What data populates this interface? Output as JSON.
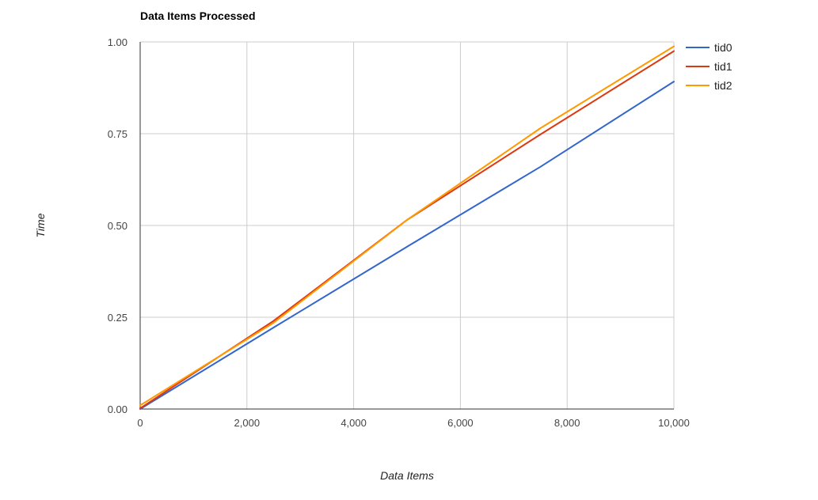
{
  "chart_data": {
    "type": "line",
    "title": "Data Items Processed",
    "xlabel": "Data Items",
    "ylabel": "Time",
    "xlim": [
      0,
      10000
    ],
    "ylim": [
      0,
      1.0
    ],
    "xticks": [
      0,
      2000,
      4000,
      6000,
      8000,
      10000
    ],
    "xtick_labels": [
      "0",
      "2,000",
      "4,000",
      "6,000",
      "8,000",
      "10,000"
    ],
    "yticks": [
      0,
      0.25,
      0.5,
      0.75,
      1.0
    ],
    "ytick_labels": [
      "0.00",
      "0.25",
      "0.50",
      "0.75",
      "1.00"
    ],
    "grid": true,
    "legend_position": "right",
    "series": [
      {
        "name": "tid0",
        "color": "#3366cc",
        "points": [
          [
            0,
            0.0
          ],
          [
            2500,
            0.222
          ],
          [
            5000,
            0.442
          ],
          [
            7500,
            0.66
          ],
          [
            10000,
            0.892
          ]
        ]
      },
      {
        "name": "tid1",
        "color": "#dc3912",
        "points": [
          [
            0,
            0.002
          ],
          [
            2500,
            0.24
          ],
          [
            5000,
            0.515
          ],
          [
            7500,
            0.748
          ],
          [
            10000,
            0.975
          ]
        ]
      },
      {
        "name": "tid2",
        "color": "#ff9900",
        "points": [
          [
            0,
            0.01
          ],
          [
            2500,
            0.235
          ],
          [
            5000,
            0.515
          ],
          [
            7500,
            0.765
          ],
          [
            10000,
            0.988
          ]
        ]
      }
    ]
  }
}
